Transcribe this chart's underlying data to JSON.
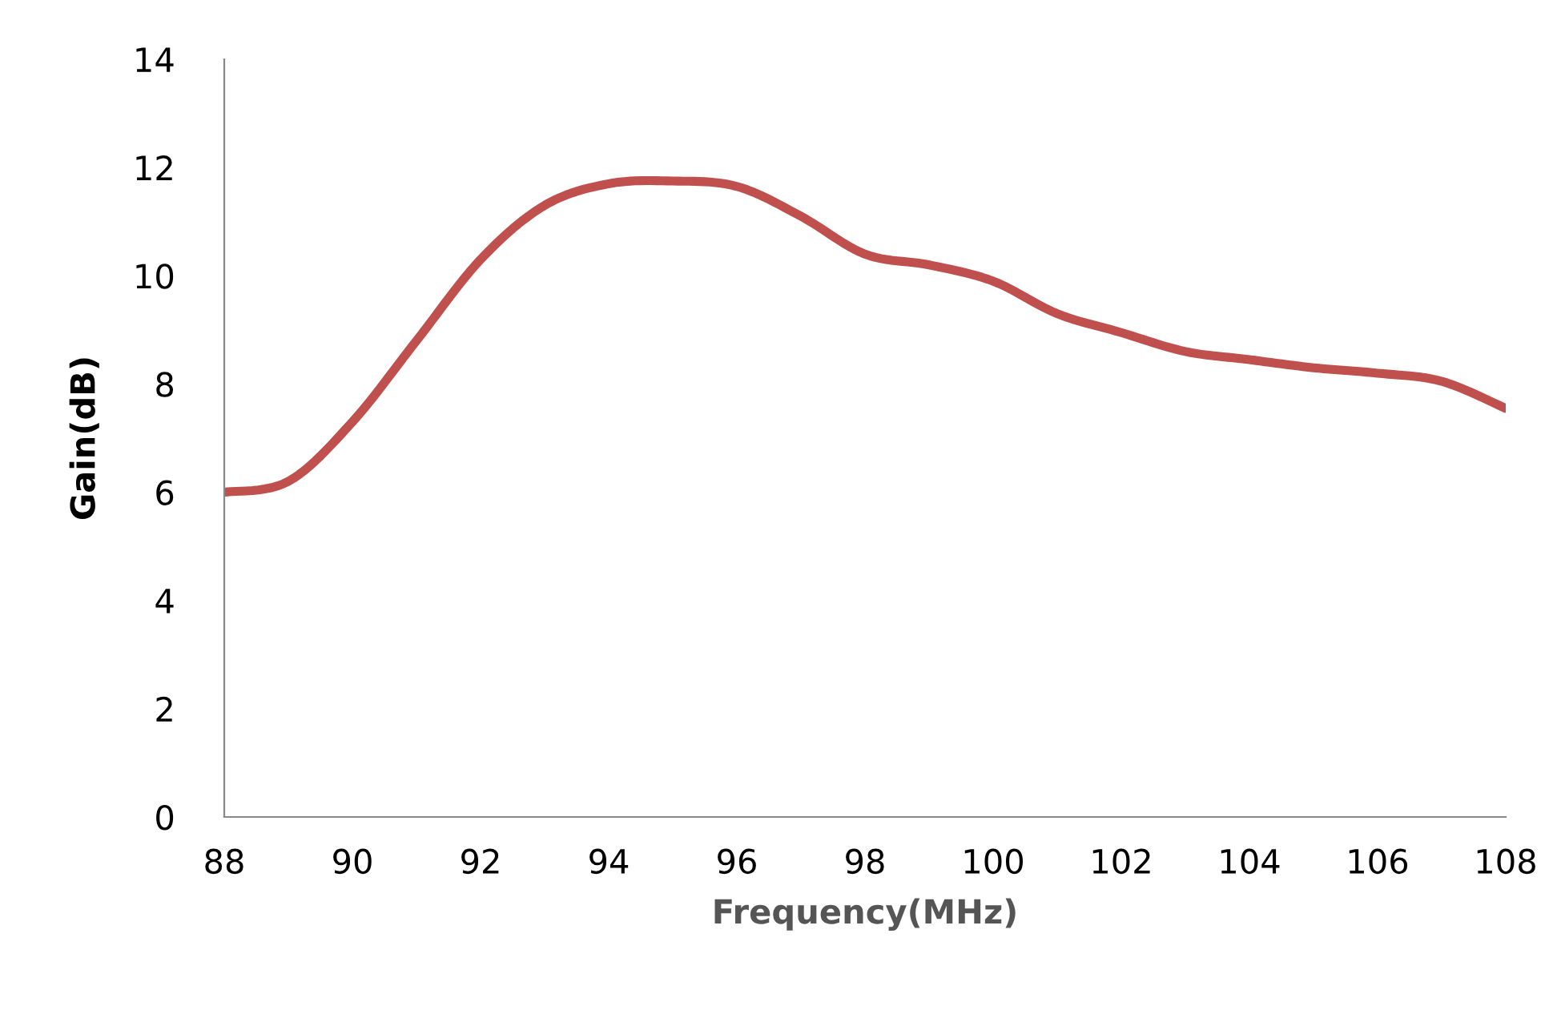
{
  "chart_data": {
    "type": "line",
    "xlabel": "Frequency(MHz)",
    "ylabel": "Gain(dB)",
    "x": [
      88,
      89,
      90,
      91,
      92,
      93,
      94,
      95,
      96,
      97,
      98,
      99,
      100,
      101,
      102,
      103,
      104,
      105,
      106,
      107,
      108
    ],
    "series": [
      {
        "color": "#c0504d",
        "values": [
          6.0,
          6.2,
          7.3,
          8.8,
          10.3,
          11.3,
          11.7,
          11.75,
          11.65,
          11.1,
          10.4,
          10.2,
          9.9,
          9.3,
          8.95,
          8.6,
          8.45,
          8.3,
          8.2,
          8.05,
          7.55
        ]
      }
    ],
    "xlim": [
      88,
      108
    ],
    "xticks": [
      88,
      90,
      92,
      94,
      96,
      98,
      100,
      102,
      104,
      106,
      108
    ],
    "ylim": [
      0,
      14
    ],
    "yticks": [
      0,
      2,
      4,
      6,
      8,
      10,
      12,
      14
    ],
    "grid": false,
    "legend": false,
    "marker": "none",
    "line_style": "solid"
  }
}
